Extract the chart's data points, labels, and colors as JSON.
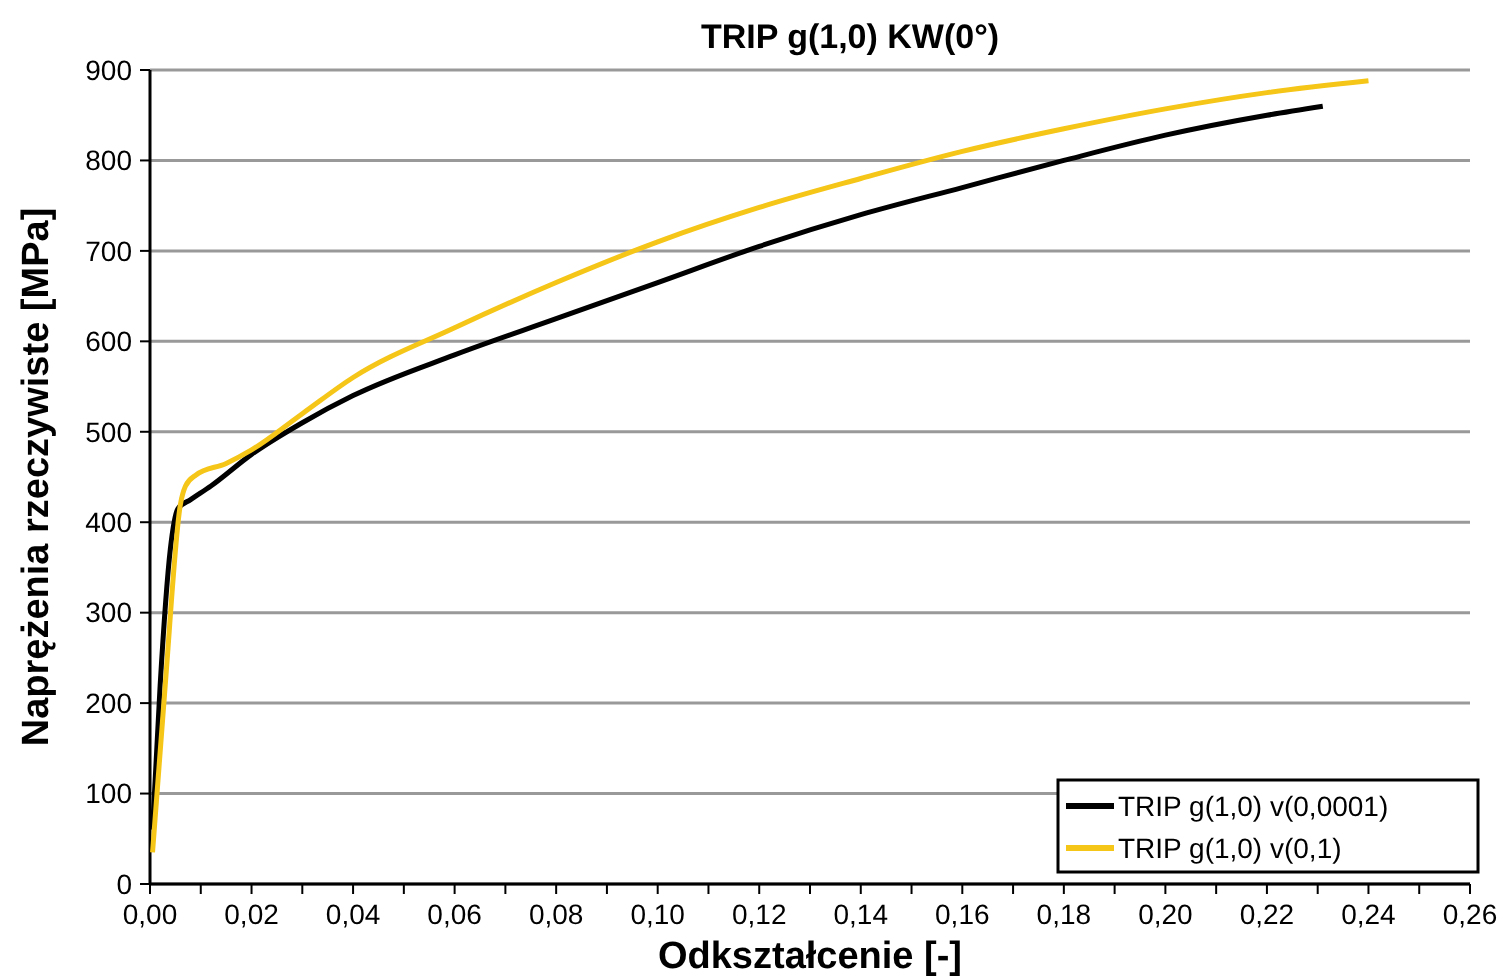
{
  "chart_data": {
    "type": "line",
    "title": "TRIP g(1,0)  KW(0°)",
    "xlabel": "Odkształcenie [-]",
    "ylabel": "Naprężenia rzeczywiste [MPa]",
    "xlim": [
      0,
      0.26
    ],
    "ylim": [
      0,
      900
    ],
    "xticks": [
      {
        "value": 0,
        "label": "0,00"
      },
      {
        "value": 0.01,
        "label": null
      },
      {
        "value": 0.02,
        "label": "0,02"
      },
      {
        "value": 0.03,
        "label": null
      },
      {
        "value": 0.04,
        "label": "0,04"
      },
      {
        "value": 0.05,
        "label": null
      },
      {
        "value": 0.06,
        "label": "0,06"
      },
      {
        "value": 0.07,
        "label": null
      },
      {
        "value": 0.08,
        "label": "0,08"
      },
      {
        "value": 0.09,
        "label": null
      },
      {
        "value": 0.1,
        "label": "0,10"
      },
      {
        "value": 0.11,
        "label": null
      },
      {
        "value": 0.12,
        "label": "0,12"
      },
      {
        "value": 0.13,
        "label": null
      },
      {
        "value": 0.14,
        "label": "0,14"
      },
      {
        "value": 0.15,
        "label": null
      },
      {
        "value": 0.16,
        "label": "0,16"
      },
      {
        "value": 0.17,
        "label": null
      },
      {
        "value": 0.18,
        "label": "0,18"
      },
      {
        "value": 0.19,
        "label": null
      },
      {
        "value": 0.2,
        "label": "0,20"
      },
      {
        "value": 0.21,
        "label": null
      },
      {
        "value": 0.22,
        "label": "0,22"
      },
      {
        "value": 0.23,
        "label": null
      },
      {
        "value": 0.24,
        "label": "0,24"
      },
      {
        "value": 0.25,
        "label": null
      },
      {
        "value": 0.26,
        "label": "0,26"
      }
    ],
    "yticks": [
      0,
      100,
      200,
      300,
      400,
      500,
      600,
      700,
      800,
      900
    ],
    "grid": "y",
    "legend": "bottom right",
    "line_style": "solid",
    "series": [
      {
        "name": "TRIP g(1,0) v(0,0001)",
        "color": "#000000",
        "x": [
          0.0005,
          0.002,
          0.004,
          0.0055,
          0.008,
          0.012,
          0.02,
          0.03,
          0.04,
          0.06,
          0.08,
          0.1,
          0.12,
          0.14,
          0.16,
          0.18,
          0.2,
          0.22,
          0.231
        ],
        "values": [
          60,
          220,
          370,
          415,
          425,
          440,
          475,
          510,
          540,
          585,
          625,
          665,
          705,
          740,
          770,
          800,
          828,
          850,
          860
        ]
      },
      {
        "name": "TRIP g(1,0) v(0,1)",
        "color": "#f5c518",
        "x": [
          0.0005,
          0.003,
          0.006,
          0.007,
          0.009,
          0.015,
          0.02,
          0.03,
          0.04,
          0.06,
          0.08,
          0.1,
          0.12,
          0.14,
          0.16,
          0.18,
          0.2,
          0.22,
          0.24
        ],
        "values": [
          35,
          220,
          420,
          440,
          452,
          465,
          480,
          520,
          560,
          615,
          665,
          710,
          748,
          780,
          810,
          835,
          857,
          875,
          888
        ]
      }
    ]
  }
}
